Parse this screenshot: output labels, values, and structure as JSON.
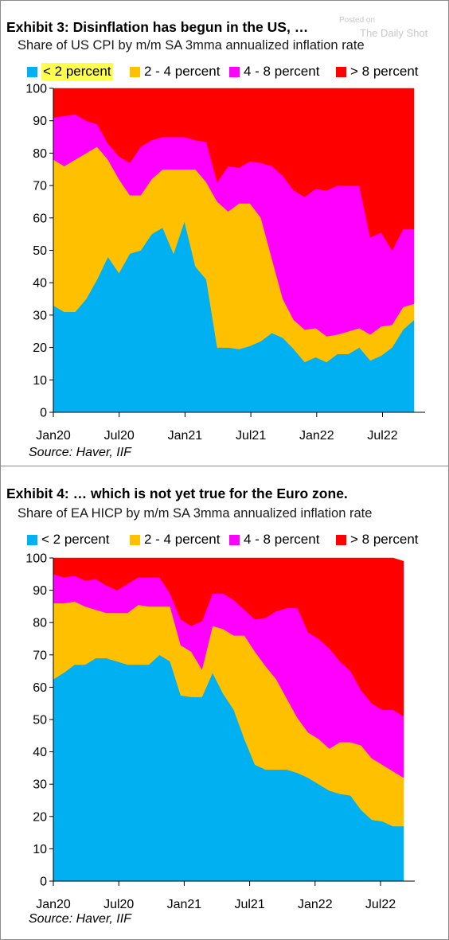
{
  "watermark": {
    "posted_on": "Posted on",
    "site": "The Daily Shot"
  },
  "colors": {
    "lt2": "#00b0f0",
    "2to4": "#ffc000",
    "4to8": "#ff00ff",
    "gt8": "#ff0000",
    "highlight": "#ffff4d"
  },
  "chart_data": [
    {
      "type": "area",
      "stacked": true,
      "title": "Exhibit 3: Disinflation has begun in the US, …",
      "subtitle": "Share of US CPI by m/m SA 3mma annualized inflation rate",
      "source": "Source: Haver, IIF",
      "legend_position": "top",
      "ylim": [
        0,
        100
      ],
      "yticks": [
        0,
        10,
        20,
        30,
        40,
        50,
        60,
        70,
        80,
        90,
        100
      ],
      "x_tick_labels": [
        "Jan20",
        "Jul20",
        "Jan21",
        "Jul21",
        "Jan22",
        "Jul22"
      ],
      "x": [
        "2020-01",
        "2020-02",
        "2020-03",
        "2020-04",
        "2020-05",
        "2020-06",
        "2020-07",
        "2020-08",
        "2020-09",
        "2020-10",
        "2020-11",
        "2020-12",
        "2021-01",
        "2021-02",
        "2021-03",
        "2021-04",
        "2021-05",
        "2021-06",
        "2021-07",
        "2021-08",
        "2021-09",
        "2021-10",
        "2021-11",
        "2021-12",
        "2022-01",
        "2022-02",
        "2022-03",
        "2022-04",
        "2022-05",
        "2022-06",
        "2022-07",
        "2022-08",
        "2022-09",
        "2022-10"
      ],
      "series": [
        {
          "name": "< 2 percent",
          "color": "#00b0f0",
          "highlighted": true,
          "values": [
            33,
            31,
            31,
            35,
            41,
            48,
            43,
            49,
            50,
            55,
            57,
            49,
            59,
            45,
            41,
            20,
            20,
            19.5,
            20.5,
            22,
            24.5,
            23,
            19.5,
            15.5,
            17,
            15.5,
            18,
            18,
            20,
            16,
            17.5,
            20,
            25.5,
            28.5
          ]
        },
        {
          "name": "2 - 4 percent",
          "color": "#ffc000",
          "values": [
            45,
            45,
            47,
            45,
            41,
            30,
            29,
            18,
            17,
            17,
            18,
            26,
            16,
            30,
            30,
            45,
            42,
            45,
            44,
            38,
            23,
            12,
            9,
            10,
            9,
            8,
            6,
            7,
            6,
            8,
            9,
            7,
            7,
            5
          ]
        },
        {
          "name": "4 - 8 percent",
          "color": "#ff00ff",
          "values": [
            13,
            15.5,
            14,
            10,
            7,
            5,
            7,
            10,
            15,
            12,
            10,
            10,
            10,
            9,
            12.5,
            6,
            14,
            11,
            13,
            17,
            28.5,
            38,
            40,
            41,
            43,
            45,
            46,
            45,
            44,
            30,
            29,
            23,
            24,
            23
          ]
        },
        {
          "name": "> 8 percent",
          "color": "#ff0000",
          "values": [
            9,
            8.5,
            8,
            10,
            11,
            17,
            21,
            23,
            18,
            16,
            15,
            15,
            15,
            16,
            16.5,
            29,
            24,
            24.5,
            22.5,
            23,
            24,
            27,
            31.5,
            33.5,
            31,
            31.5,
            30,
            30,
            30,
            46,
            44.5,
            50,
            43.5,
            43.5
          ]
        }
      ]
    },
    {
      "type": "area",
      "stacked": true,
      "title": "Exhibit 4: … which is not yet true for the Euro zone.",
      "subtitle": "Share of EA HICP by m/m SA 3mma annualized inflation rate",
      "source": "Source: Haver, IIF",
      "legend_position": "top",
      "ylim": [
        0,
        100
      ],
      "yticks": [
        0,
        10,
        20,
        30,
        40,
        50,
        60,
        70,
        80,
        90,
        100
      ],
      "x_tick_labels": [
        "Jan20",
        "Jul20",
        "Jan21",
        "Jul21",
        "Jan22",
        "Jul22"
      ],
      "x": [
        "2020-01",
        "2020-02",
        "2020-03",
        "2020-04",
        "2020-05",
        "2020-06",
        "2020-07",
        "2020-08",
        "2020-09",
        "2020-10",
        "2020-11",
        "2020-12",
        "2021-01",
        "2021-02",
        "2021-03",
        "2021-04",
        "2021-05",
        "2021-06",
        "2021-07",
        "2021-08",
        "2021-09",
        "2021-10",
        "2021-11",
        "2021-12",
        "2022-01",
        "2022-02",
        "2022-03",
        "2022-04",
        "2022-05",
        "2022-06",
        "2022-07",
        "2022-08",
        "2022-09",
        "2022-10"
      ],
      "series": [
        {
          "name": "< 2 percent",
          "color": "#00b0f0",
          "values": [
            62.5,
            64.5,
            67,
            67,
            69,
            69,
            68,
            67,
            67,
            67,
            70,
            68,
            57.5,
            57,
            57,
            64.5,
            58,
            53,
            44,
            36,
            34.5,
            34.5,
            34.5,
            33.5,
            32,
            30,
            28,
            27,
            26.5,
            22,
            19,
            18.5,
            17,
            17
          ]
        },
        {
          "name": "2 - 4 percent",
          "color": "#ffc000",
          "values": [
            23.5,
            21.5,
            19.5,
            18,
            15,
            14,
            15,
            16,
            18.5,
            18,
            15,
            17,
            15.5,
            14,
            8.5,
            14.5,
            20,
            23,
            32,
            35,
            32,
            28,
            22,
            17,
            14,
            14,
            13,
            16,
            16.5,
            20,
            19,
            17.5,
            17,
            15
          ]
        },
        {
          "name": "4 - 8 percent",
          "color": "#ff00ff",
          "values": [
            9,
            8,
            8,
            8,
            9.5,
            8.5,
            7,
            9,
            8.5,
            9,
            9,
            4,
            8,
            8,
            15,
            10,
            11,
            11,
            8,
            10,
            15,
            21,
            28,
            34,
            31,
            31,
            31,
            25,
            22,
            17,
            17,
            17,
            19,
            19
          ]
        },
        {
          "name": "> 8 percent",
          "color": "#ff0000",
          "values": [
            5,
            6,
            5.5,
            7,
            6.5,
            8.5,
            10,
            8,
            6,
            6,
            6,
            11,
            19,
            21,
            19.5,
            11,
            11,
            13,
            16,
            19,
            18.5,
            16.5,
            15.5,
            15.5,
            23,
            25,
            28,
            32,
            35,
            41,
            45,
            47,
            47,
            48
          ]
        }
      ]
    }
  ]
}
